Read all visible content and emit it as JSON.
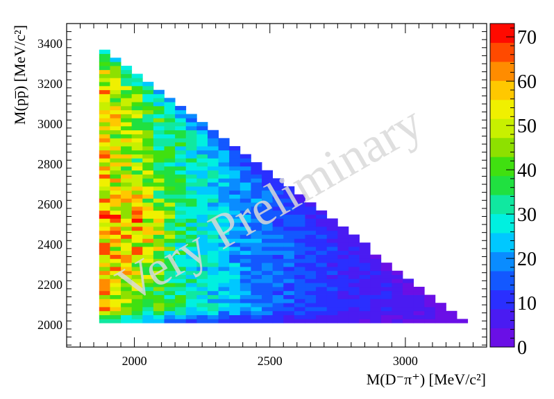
{
  "chart_data": {
    "type": "heatmap",
    "title": "",
    "xlabel": "M(D⁻π⁺) [MeV/c²]",
    "ylabel": "M(pp̅) [MeV/c²]",
    "xlim": [
      1750,
      3300
    ],
    "ylim": [
      1890,
      3500
    ],
    "x_ticks": [
      "2000",
      "2500",
      "3000"
    ],
    "x_tick_values": [
      2000,
      2500,
      3000
    ],
    "y_ticks": [
      "2000",
      "2200",
      "2400",
      "2600",
      "2800",
      "3000",
      "3200",
      "3400"
    ],
    "y_tick_values": [
      2000,
      2200,
      2400,
      2600,
      2800,
      3000,
      3200,
      3400
    ],
    "z_range": [
      0,
      73
    ],
    "z_ticks": [
      "0",
      "10",
      "20",
      "30",
      "40",
      "50",
      "60",
      "70"
    ],
    "z_tick_values": [
      0,
      10,
      20,
      30,
      40,
      50,
      60,
      70
    ],
    "bin_x_start": 1870,
    "bin_x_width": 40,
    "bin_y_start": 2010,
    "bin_y_width": 20,
    "kinematic_boundary": [
      [
        1870,
        3385
      ],
      [
        3225,
        2010
      ]
    ],
    "palette": [
      "#6a0fe6",
      "#4a1bf2",
      "#2a2fff",
      "#1358ff",
      "#0a8cff",
      "#00c8ff",
      "#00f0e0",
      "#10e8a0",
      "#20e040",
      "#40e010",
      "#8ee000",
      "#c8f000",
      "#f0f000",
      "#ffc800",
      "#ff8c00",
      "#ff4a00",
      "#ff0a00"
    ],
    "watermark": "Very Preliminary"
  }
}
